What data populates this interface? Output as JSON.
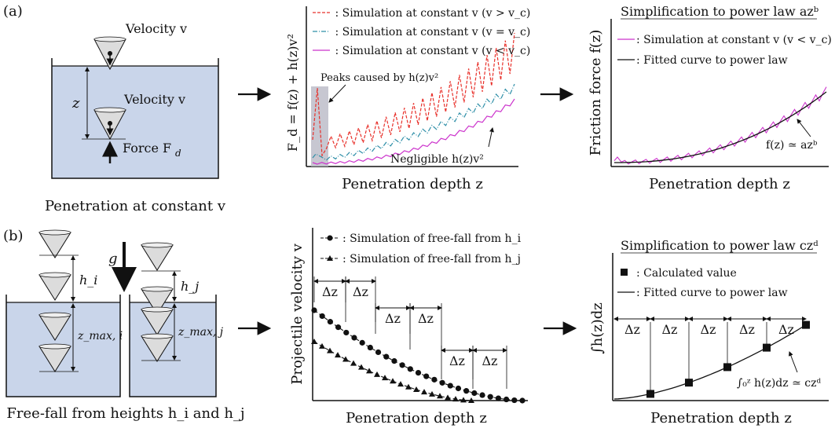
{
  "panel_a": {
    "label": "(a)",
    "schematic": {
      "velocity_top": "Velocity v",
      "z_label": "z",
      "velocity_mid": "Velocity v",
      "force": "Force F",
      "force_sub": "d",
      "caption": "Penetration at constant v"
    },
    "middle_plot": {
      "ylabel": "F_d = f(z) + h(z)v²",
      "xlabel": "Penetration depth z",
      "legend": [
        " : Simulation at constant v (v > v_c)",
        " : Simulation at constant v (v = v_c)",
        " : Simulation at constant v (v < v_c)"
      ],
      "ann_peaks": "Peaks caused by h(z)v²",
      "ann_negligible": "Negligible h(z)v²"
    },
    "right_plot": {
      "title": "Simplification to power law azᵇ",
      "ylabel": "Friction force f(z)",
      "xlabel": "Penetration depth z",
      "legend": [
        ": Simulation at constant v (v < v_c)",
        ": Fitted curve to power law"
      ],
      "ann_fit": "f(z) ≃ azᵇ"
    }
  },
  "panel_b": {
    "label": "(b)",
    "schematic": {
      "g": "g",
      "h_i": "h_i",
      "h_j": "h_j",
      "zmax_i": "z_max, i",
      "zmax_j": "z_max, j",
      "caption": "Free-fall from heights h_i and h_j"
    },
    "middle_plot": {
      "ylabel": "Projectile velocity v",
      "xlabel": "Penetration depth z",
      "legend": [
        ": Simulation of free-fall from h_i",
        ": Simulation of free-fall from h_j"
      ],
      "delta": "Δz"
    },
    "right_plot": {
      "title": "Simplification to power law czᵈ",
      "ylabel": "∫h(z)dz",
      "xlabel": "Penetration depth z",
      "legend": [
        ": Calculated value",
        ": Fitted curve to power law"
      ],
      "delta": "Δz",
      "ann_fit": "∫₀ᶻ h(z)dz ≃ czᵈ"
    }
  },
  "colors": {
    "fluid": "#c9d5ea",
    "red": "#e8302a",
    "teal": "#2f8fa8",
    "magenta": "#cc33cc",
    "peak_box": "#b9b9c6"
  }
}
